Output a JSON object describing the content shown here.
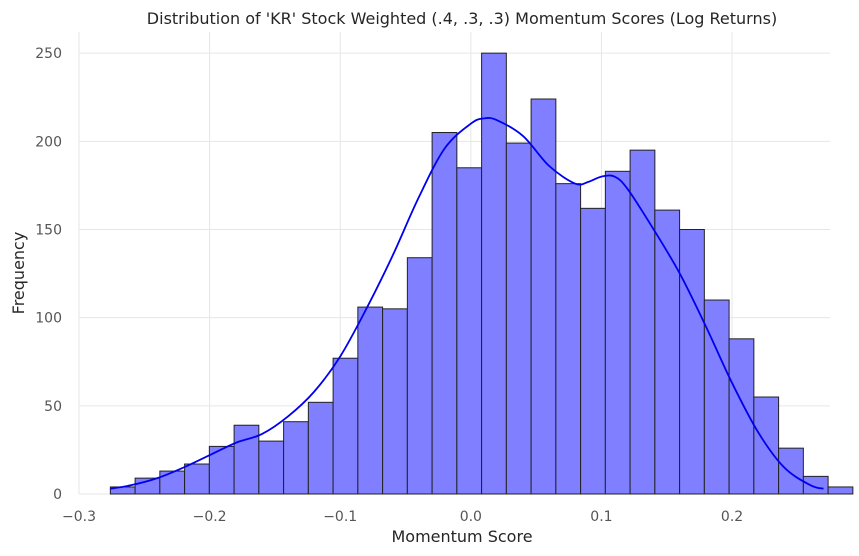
{
  "chart_data": {
    "type": "bar",
    "title": "Distribution of 'KR' Stock Weighted (.4, .3, .3) Momentum Scores (Log Returns)",
    "xlabel": "Momentum Score",
    "ylabel": "Frequency",
    "xlim": [
      -0.3,
      0.275
    ],
    "ylim": [
      0,
      262
    ],
    "xticks": [
      -0.3,
      -0.2,
      -0.1,
      0.0,
      0.1,
      0.2
    ],
    "xtick_labels": [
      "−0.3",
      "−0.2",
      "−0.1",
      "0.0",
      "0.1",
      "0.2"
    ],
    "yticks": [
      0,
      50,
      100,
      150,
      200,
      250
    ],
    "ytick_labels": [
      "0",
      "50",
      "100",
      "150",
      "200",
      "250"
    ],
    "grid": true,
    "bin_start": -0.276,
    "bin_width": 0.01895,
    "values": [
      4,
      9,
      13,
      17,
      27,
      39,
      30,
      41,
      52,
      77,
      106,
      105,
      134,
      205,
      185,
      250,
      199,
      224,
      176,
      162,
      183,
      195,
      161,
      150,
      110,
      88,
      55,
      26,
      10,
      4
    ],
    "bar_color": "#7f7fff",
    "edge_color": "#222222",
    "kde": {
      "color": "#0000ee",
      "x": [
        -0.276,
        -0.26,
        -0.24,
        -0.22,
        -0.2,
        -0.18,
        -0.16,
        -0.14,
        -0.12,
        -0.1,
        -0.08,
        -0.06,
        -0.04,
        -0.02,
        0.0,
        0.01,
        0.02,
        0.04,
        0.06,
        0.08,
        0.09,
        0.1,
        0.11,
        0.12,
        0.14,
        0.16,
        0.18,
        0.2,
        0.22,
        0.24,
        0.26,
        0.27
      ],
      "y": [
        3,
        5,
        9,
        15,
        22,
        29,
        34,
        44,
        58,
        78,
        105,
        135,
        168,
        196,
        210,
        213,
        212,
        203,
        186,
        176,
        177,
        180,
        180,
        173,
        150,
        125,
        95,
        63,
        35,
        15,
        5,
        3
      ]
    }
  }
}
